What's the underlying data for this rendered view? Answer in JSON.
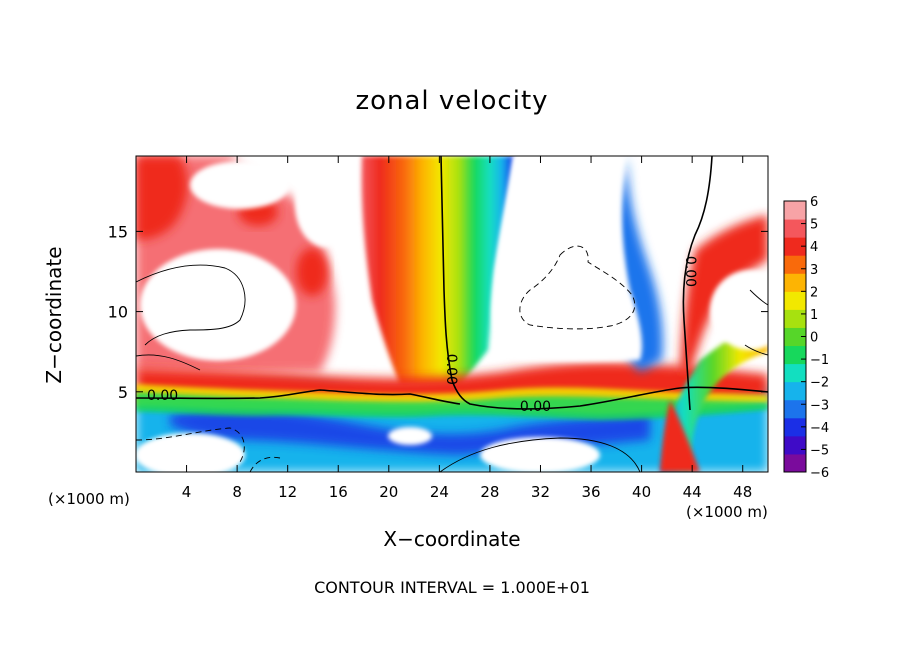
{
  "chart_data": {
    "type": "heatmap",
    "title": "zonal velocity",
    "xlabel": "X−coordinate",
    "ylabel": "Z−coordinate",
    "x_unit": "(×1000 m)",
    "x_ticks": [
      4,
      8,
      12,
      16,
      20,
      24,
      28,
      32,
      36,
      40,
      44,
      48
    ],
    "y_ticks": [
      5,
      10,
      15
    ],
    "xlim": [
      0,
      50
    ],
    "ylim": [
      0,
      19.7
    ],
    "colorbar": {
      "ticks": [
        "6",
        "5",
        "4",
        "3",
        "2",
        "1",
        "0",
        "−1",
        "−2",
        "−3",
        "−4",
        "−5",
        "−6"
      ],
      "range": [
        -6,
        6
      ],
      "colors": [
        "#7a0b9c",
        "#3f0bc7",
        "#1b2fe6",
        "#1c74ec",
        "#16b3ec",
        "#12dfc0",
        "#17d85c",
        "#56d629",
        "#a7e10f",
        "#f2e800",
        "#fdb403",
        "#f96a0b",
        "#ef2a1e",
        "#f4575c",
        "#f7a3a6"
      ]
    },
    "contour_labels": [
      {
        "text": "0.00",
        "x": 2.1,
        "z": 4.8
      },
      {
        "text": "0.00",
        "x": 31.6,
        "z": 4.1
      },
      {
        "text": "0.00",
        "x": 25.0,
        "z": 6.4
      },
      {
        "text": "0.00",
        "x": 43.9,
        "z": 12.5
      }
    ],
    "footer": "CONTOUR INTERVAL = 1.000E+01"
  }
}
